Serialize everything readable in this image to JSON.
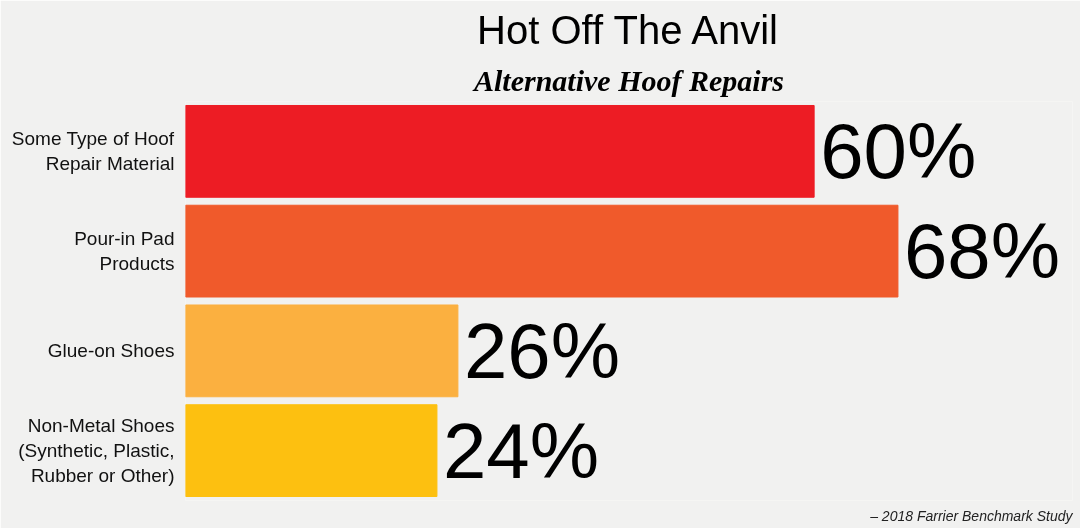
{
  "chart_data": {
    "type": "bar",
    "orientation": "horizontal",
    "title": "Hot Off The Anvil",
    "subtitle": "Alternative Hoof Repairs",
    "categories": [
      "Some Type of Hoof\nRepair Material",
      "Pour-in Pad\nProducts",
      "Glue-on Shoes",
      "Non-Metal Shoes\n(Synthetic, Plastic,\nRubber or Other)"
    ],
    "values": [
      60,
      68,
      26,
      24
    ],
    "colors": [
      "#ed1c24",
      "#f05a2b",
      "#fbb040",
      "#fdc010"
    ],
    "data_labels": true,
    "value_labels": [
      "60%",
      "68%",
      "26%",
      "24%"
    ],
    "grid": false,
    "annotations": [
      "– 2018 Farrier Benchmark Study"
    ]
  }
}
